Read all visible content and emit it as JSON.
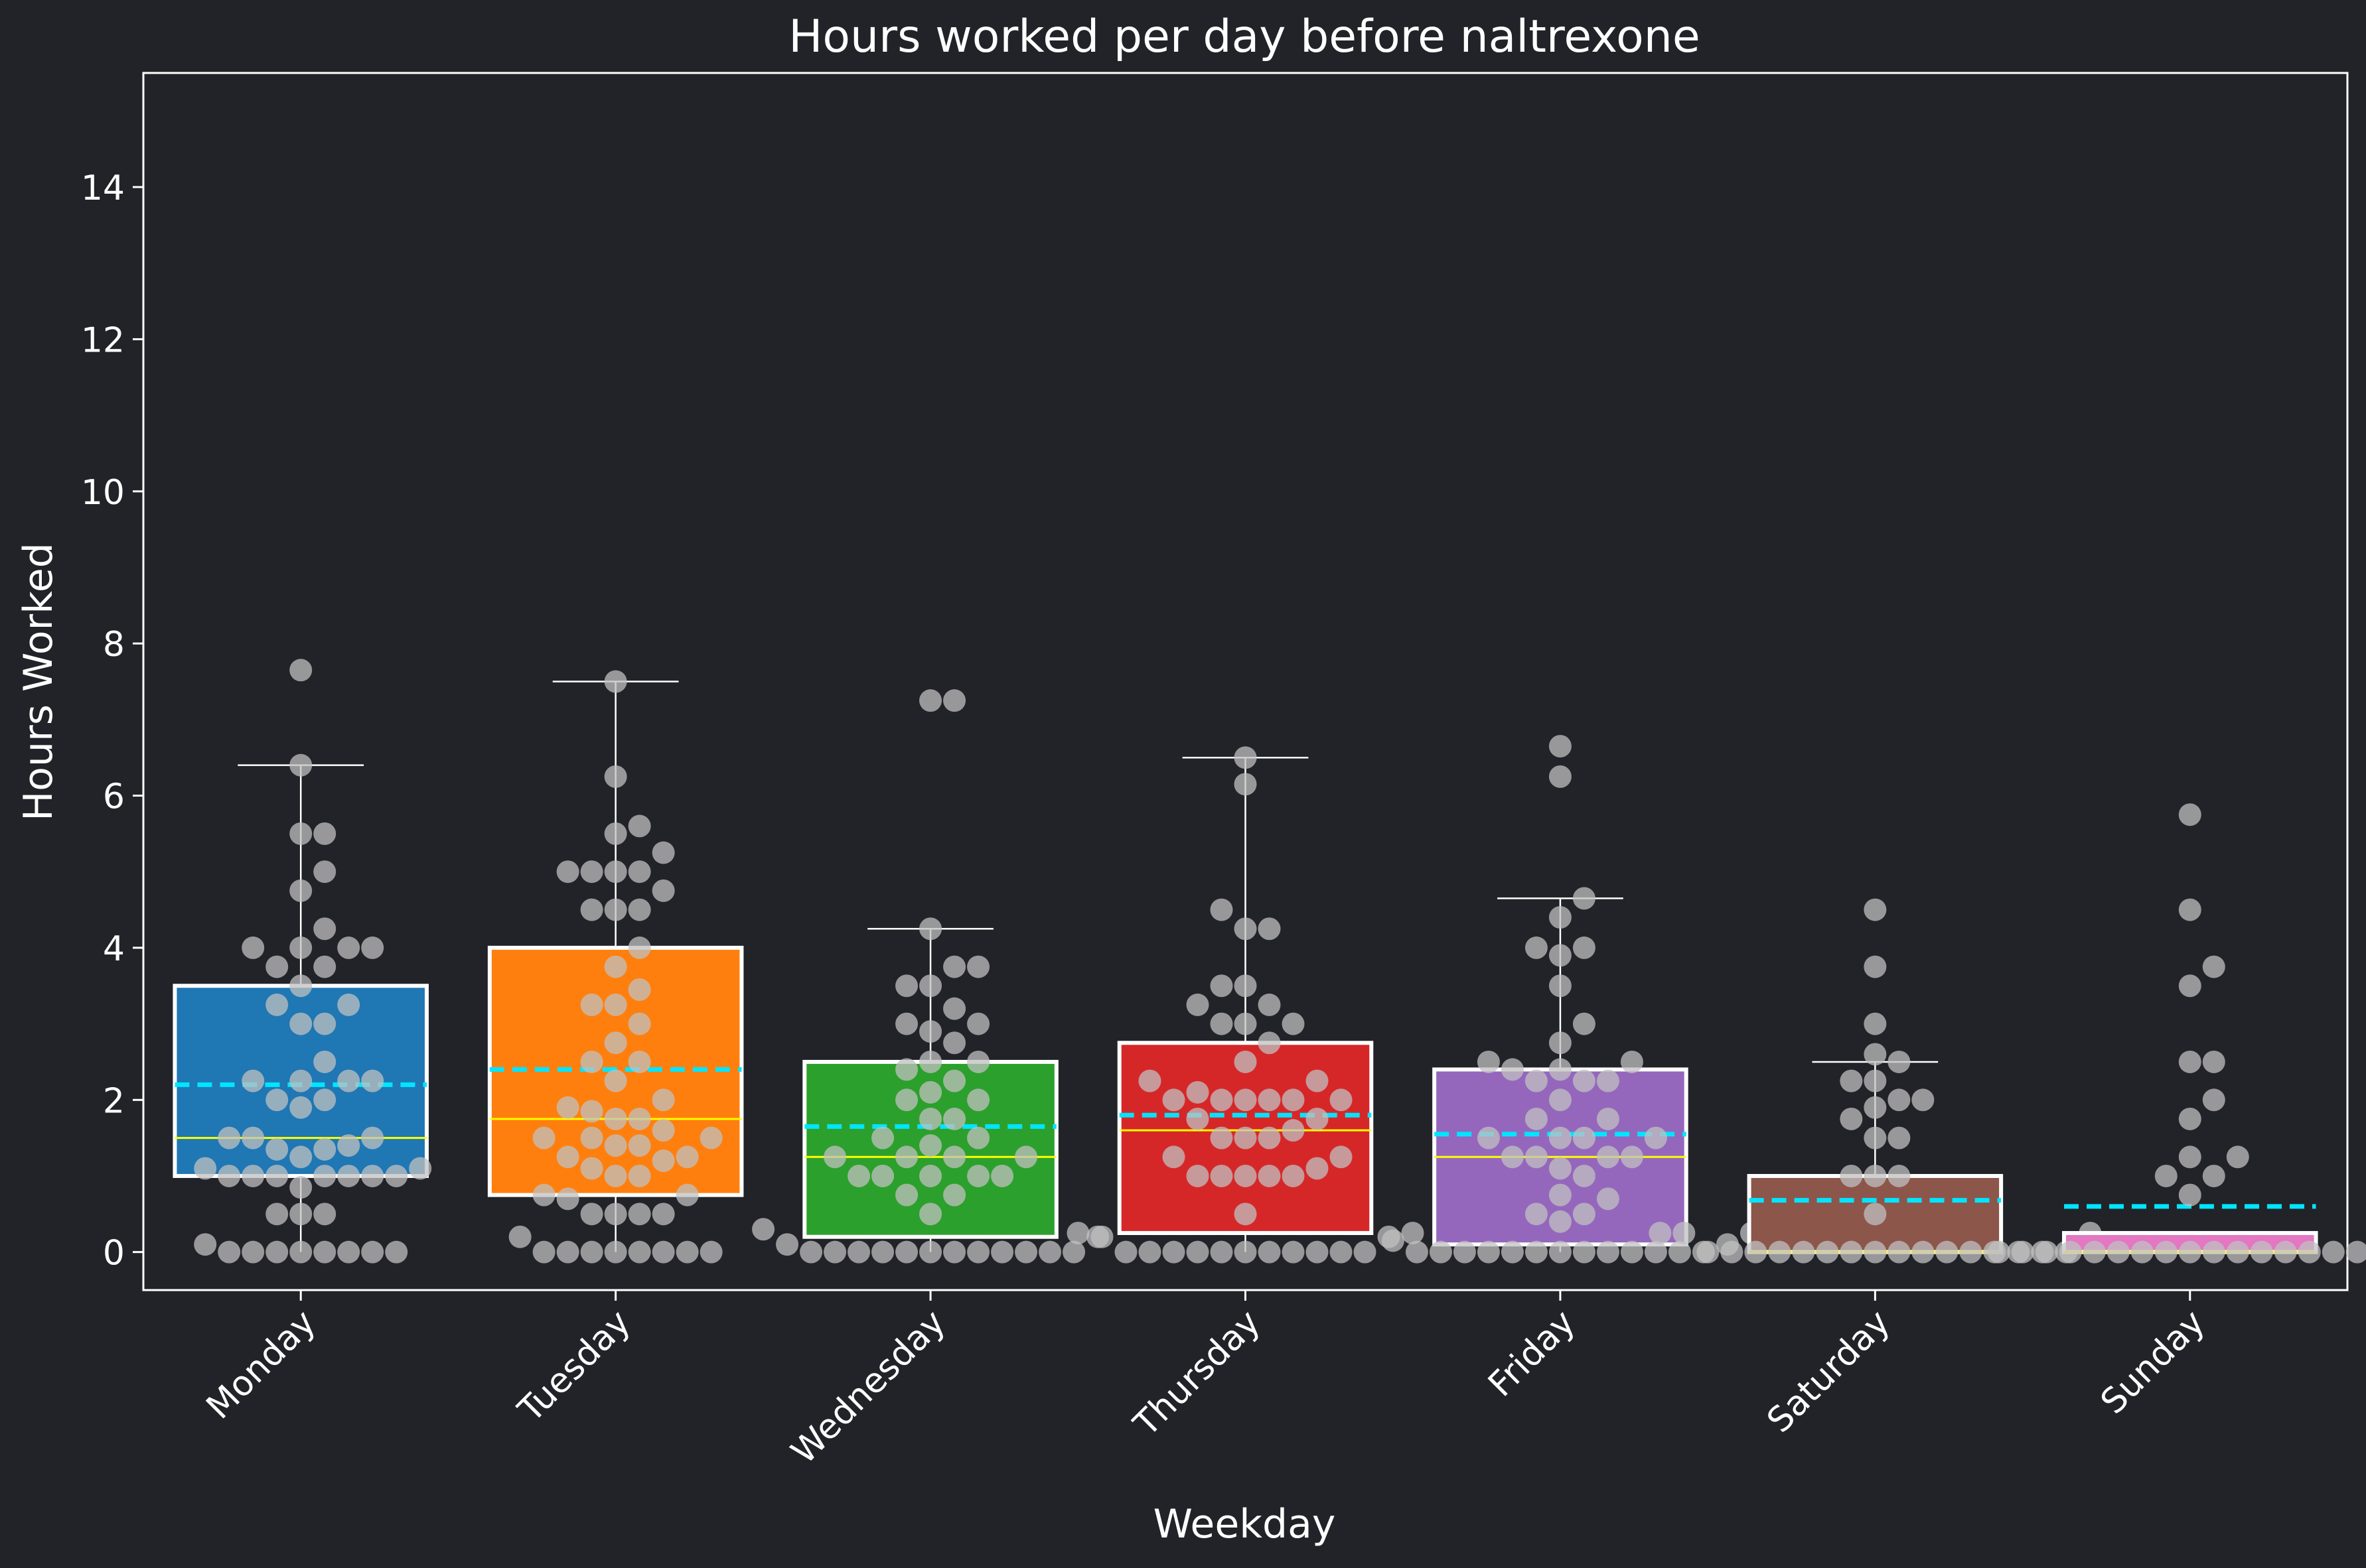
{
  "chart_data": {
    "type": "box",
    "title": "Hours worked per day before naltrexone",
    "xlabel": "Weekday",
    "ylabel": "Hours Worked",
    "ylim": [
      -0.5,
      15.5
    ],
    "yticks": [
      0,
      2,
      4,
      6,
      8,
      10,
      12,
      14
    ],
    "ytick_labels": [
      "0",
      "2",
      "4",
      "6",
      "8",
      "10",
      "12",
      "14"
    ],
    "grid": false,
    "legend": "none",
    "categories": [
      "Monday",
      "Tuesday",
      "Wednesday",
      "Thursday",
      "Friday",
      "Saturday",
      "Sunday"
    ],
    "boxes": [
      {
        "name": "Monday",
        "color": "#1f77b4",
        "q1": 1.0,
        "median": 1.5,
        "q3": 3.5,
        "mean": 2.2,
        "whisker_low": 0,
        "whisker_high": 6.4,
        "points": [
          7.65,
          6.4,
          5.5,
          5.5,
          5.0,
          4.75,
          4.25,
          4.0,
          4.0,
          4.0,
          4.0,
          3.75,
          3.75,
          3.5,
          3.25,
          3.25,
          3.0,
          3.0,
          2.5,
          2.25,
          2.25,
          2.25,
          2.25,
          2.0,
          2.0,
          1.9,
          1.5,
          1.5,
          1.5,
          1.4,
          1.35,
          1.35,
          1.25,
          1.1,
          1.1,
          1.0,
          1.0,
          1.0,
          1.0,
          1.0,
          1.0,
          1.0,
          0.85,
          0.5,
          0.5,
          0.5,
          0.1,
          0,
          0,
          0,
          0,
          0,
          0,
          0,
          0
        ]
      },
      {
        "name": "Tuesday",
        "color": "#ff7f0e",
        "q1": 0.75,
        "median": 1.75,
        "q3": 4.0,
        "mean": 2.4,
        "whisker_low": 0,
        "whisker_high": 7.5,
        "points": [
          7.5,
          6.25,
          5.6,
          5.5,
          5.25,
          5.0,
          5.0,
          5.0,
          5.0,
          4.75,
          4.5,
          4.5,
          4.5,
          4.0,
          3.75,
          3.45,
          3.25,
          3.25,
          3.0,
          2.75,
          2.5,
          2.5,
          2.25,
          2.0,
          1.9,
          1.85,
          1.75,
          1.75,
          1.6,
          1.5,
          1.5,
          1.5,
          1.4,
          1.4,
          1.25,
          1.25,
          1.2,
          1.1,
          1.0,
          1.0,
          0.75,
          0.75,
          0.7,
          0.5,
          0.5,
          0.5,
          0.5,
          0.2,
          0,
          0,
          0,
          0,
          0,
          0,
          0,
          0
        ]
      },
      {
        "name": "Wednesday",
        "color": "#2ca02c",
        "q1": 0.2,
        "median": 1.25,
        "q3": 2.5,
        "mean": 1.65,
        "whisker_low": 0,
        "whisker_high": 4.25,
        "points": [
          7.25,
          7.25,
          4.25,
          3.75,
          3.75,
          3.5,
          3.5,
          3.2,
          3.0,
          3.0,
          2.9,
          2.75,
          2.5,
          2.5,
          2.4,
          2.25,
          2.1,
          2.0,
          2.0,
          1.75,
          1.75,
          1.5,
          1.5,
          1.4,
          1.25,
          1.25,
          1.25,
          1.25,
          1.0,
          1.0,
          1.0,
          1.0,
          1.0,
          0.75,
          0.75,
          0.5,
          0.3,
          0.2,
          0.1,
          0,
          0,
          0,
          0,
          0,
          0,
          0,
          0,
          0,
          0,
          0,
          0
        ]
      },
      {
        "name": "Thursday",
        "color": "#d62728",
        "q1": 0.25,
        "median": 1.6,
        "q3": 2.75,
        "mean": 1.8,
        "whisker_low": 0,
        "whisker_high": 6.5,
        "points": [
          6.5,
          6.15,
          4.5,
          4.25,
          4.25,
          3.5,
          3.5,
          3.25,
          3.25,
          3.0,
          3.0,
          3.0,
          2.75,
          2.5,
          2.25,
          2.25,
          2.1,
          2.0,
          2.0,
          2.0,
          2.0,
          2.0,
          2.0,
          1.75,
          1.75,
          1.6,
          1.5,
          1.5,
          1.5,
          1.25,
          1.25,
          1.1,
          1.0,
          1.0,
          1.0,
          1.0,
          1.0,
          0.5,
          0.25,
          0.25,
          0.2,
          0.2,
          0,
          0,
          0,
          0,
          0,
          0,
          0,
          0,
          0,
          0,
          0
        ]
      },
      {
        "name": "Friday",
        "color": "#9467bd",
        "q1": 0.1,
        "median": 1.25,
        "q3": 2.4,
        "mean": 1.55,
        "whisker_low": 0,
        "whisker_high": 4.65,
        "points": [
          6.65,
          6.25,
          4.65,
          4.4,
          4.0,
          4.0,
          3.9,
          3.5,
          3.0,
          2.75,
          2.5,
          2.5,
          2.4,
          2.4,
          2.25,
          2.25,
          2.25,
          2.0,
          1.75,
          1.75,
          1.5,
          1.5,
          1.5,
          1.5,
          1.25,
          1.25,
          1.25,
          1.25,
          1.1,
          1.0,
          0.75,
          0.7,
          0.5,
          0.5,
          0.4,
          0.25,
          0.15,
          0.1,
          0,
          0,
          0,
          0,
          0,
          0,
          0,
          0,
          0,
          0,
          0,
          0,
          0
        ]
      },
      {
        "name": "Saturday",
        "color": "#8c564b",
        "q1": 0,
        "median": 0,
        "q3": 1.0,
        "mean": 0.68,
        "whisker_low": 0,
        "whisker_high": 2.5,
        "points": [
          4.5,
          3.75,
          3.0,
          2.6,
          2.5,
          2.25,
          2.25,
          2.0,
          2.0,
          1.9,
          1.75,
          1.5,
          1.5,
          1.0,
          1.0,
          1.0,
          0.5,
          0.25,
          0.25,
          0.25,
          0,
          0,
          0,
          0,
          0,
          0,
          0,
          0,
          0,
          0,
          0,
          0,
          0,
          0,
          0,
          0
        ]
      },
      {
        "name": "Sunday",
        "color": "#e377c2",
        "q1": 0,
        "median": 0,
        "q3": 0.25,
        "mean": 0.6,
        "whisker_low": 0,
        "whisker_high": 0.25,
        "points": [
          5.75,
          4.5,
          3.75,
          3.5,
          2.5,
          2.5,
          2.0,
          1.75,
          1.25,
          1.25,
          1.0,
          1.0,
          0.75,
          0.25,
          0,
          0,
          0,
          0,
          0,
          0,
          0,
          0,
          0,
          0,
          0,
          0,
          0,
          0,
          0,
          0,
          0
        ]
      }
    ],
    "styles": {
      "background": "#212328",
      "axes_color": "#ffffff",
      "median_color": "#ffff00",
      "mean_color": "#00e5ff",
      "point_color": "#c0c0c0",
      "box_edge_color": "#ffffff"
    }
  }
}
